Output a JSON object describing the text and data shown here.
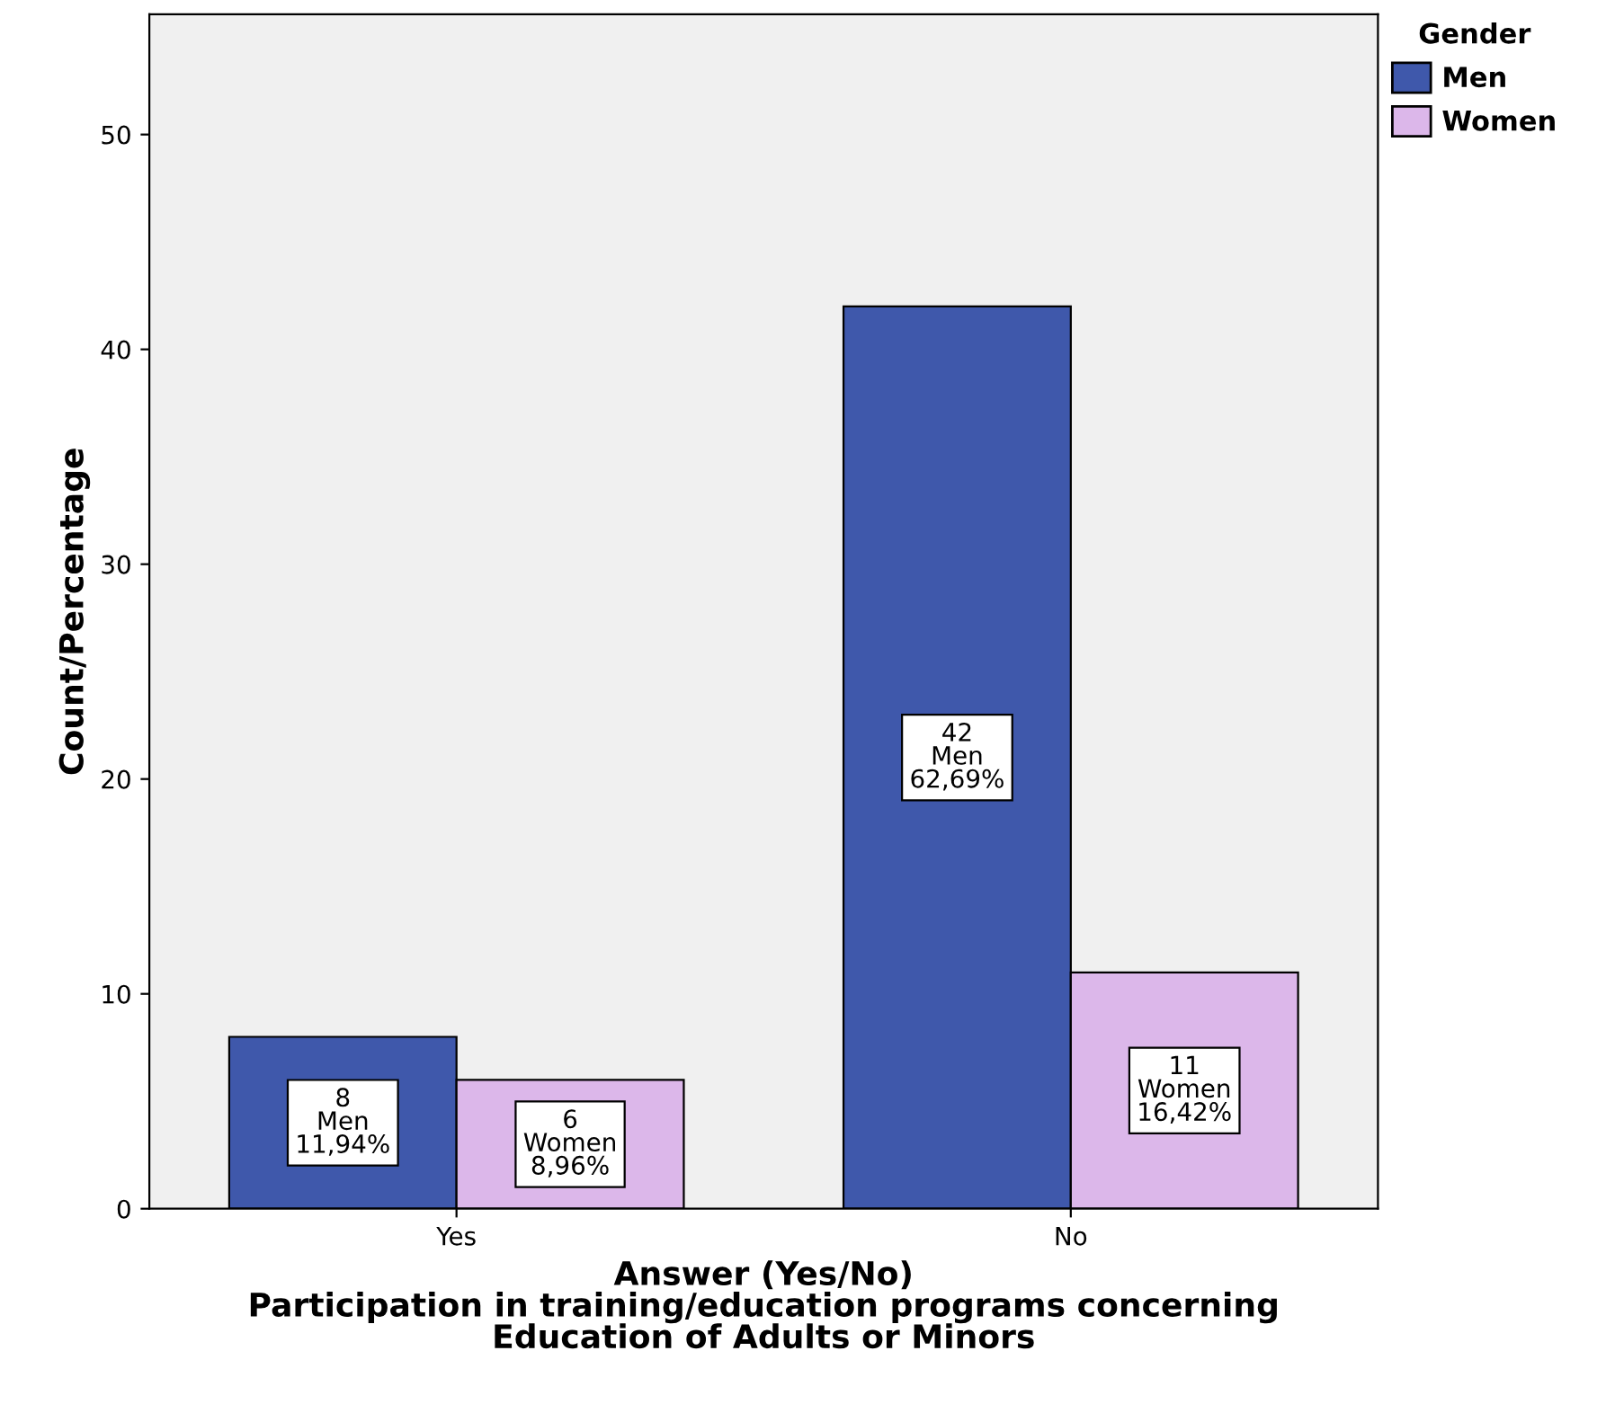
{
  "chart_data": {
    "type": "bar",
    "xlabel": "Answer (Yes/No)\nParticipation in training/education programs concerning\nEducation of Adults or Minors",
    "ylabel": "Count/Percentage",
    "legend_title": "Gender",
    "categories": [
      "Yes",
      "No"
    ],
    "series": [
      {
        "name": "Men",
        "color": "#3f58ab",
        "values": [
          8,
          42
        ],
        "value_labels": [
          "8\nMen\n11,94%",
          "42\nMen\n62,69%"
        ]
      },
      {
        "name": "Women",
        "color": "#dcb7ea",
        "values": [
          6,
          11
        ],
        "value_labels": [
          "6\nWomen\n8,96%",
          "11\nWomen\n16,42%"
        ]
      }
    ],
    "ylim": [
      0,
      55.6
    ],
    "yticks": [
      0,
      10,
      20,
      30,
      40,
      50
    ],
    "grid": false,
    "legend": "top right"
  }
}
